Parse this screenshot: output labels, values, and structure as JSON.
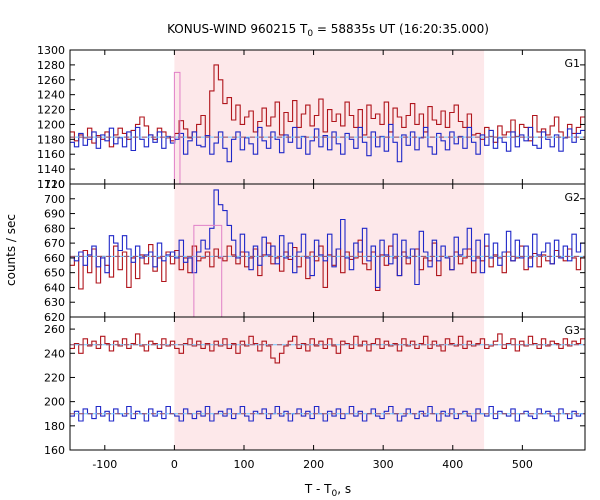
{
  "chart_data": {
    "type": "line",
    "title_main": "KONUS-WIND 960215 T",
    "title_sub": "0",
    "title_rest": " = 58835s UT (16:20:35.000)",
    "xlabel_main": "T - T",
    "xlabel_sub": "0",
    "xlabel_rest": ", s",
    "ylabel": "counts / sec",
    "xlim": [
      -150,
      590
    ],
    "xticks": [
      -100,
      0,
      100,
      200,
      300,
      400,
      500
    ],
    "shaded_interval": [
      0,
      445
    ],
    "shade_color": "#fde8ea",
    "grid": false,
    "panels": [
      {
        "name": "G1",
        "ylim": [
          1120,
          1300
        ],
        "yticks": [
          1120,
          1140,
          1160,
          1180,
          1200,
          1220,
          1240,
          1260,
          1280,
          1300
        ],
        "background_level": 1183,
        "peak_box": {
          "x": [
            0,
            8
          ],
          "y": 1270
        },
        "series": [
          {
            "color": "#b0151c",
            "values": [
              1190,
              1178,
              1186,
              1182,
              1195,
              1175,
              1185,
              1180,
              1190,
              1170,
              1186,
              1195,
              1188,
              1180,
              1192,
              1200,
              1210,
              1198,
              1186,
              1180,
              1195,
              1190,
              1182,
              1178,
              1188,
              1205,
              1194,
              1182,
              1190,
              1200,
              1212,
              1185,
              1245,
              1280,
              1260,
              1228,
              1236,
              1206,
              1226,
              1200,
              1210,
              1218,
              1190,
              1204,
              1222,
              1198,
              1210,
              1230,
              1186,
              1216,
              1204,
              1232,
              1196,
              1214,
              1226,
              1198,
              1212,
              1234,
              1190,
              1220,
              1204,
              1214,
              1198,
              1230,
              1212,
              1196,
              1220,
              1186,
              1226,
              1208,
              1214,
              1200,
              1230,
              1190,
              1222,
              1210,
              1196,
              1212,
              1228,
              1200,
              1214,
              1190,
              1224,
              1206,
              1200,
              1218,
              1196,
              1216,
              1226,
              1204,
              1196,
              1214,
              1186,
              1188,
              1180,
              1196,
              1184,
              1176,
              1198,
              1186,
              1190,
              1206,
              1184,
              1200,
              1196,
              1178,
              1212,
              1190,
              1194,
              1186,
              1198,
              1210,
              1190,
              1182,
              1200,
              1188,
              1196,
              1210
            ]
          },
          {
            "color": "#2028c8",
            "values": [
              1176,
              1170,
              1188,
              1172,
              1180,
              1190,
              1168,
              1186,
              1178,
              1195,
              1174,
              1182,
              1170,
              1190,
              1165,
              1196,
              1180,
              1170,
              1186,
              1176,
              1190,
              1168,
              1184,
              1175,
              1180,
              1188,
              1160,
              1178,
              1190,
              1172,
              1170,
              1185,
              1160,
              1175,
              1190,
              1168,
              1150,
              1180,
              1190,
              1166,
              1182,
              1174,
              1160,
              1196,
              1178,
              1168,
              1190,
              1180,
              1162,
              1186,
              1176,
              1196,
              1168,
              1184,
              1160,
              1178,
              1194,
              1170,
              1185,
              1166,
              1190,
              1174,
              1160,
              1188,
              1180,
              1168,
              1196,
              1176,
              1158,
              1190,
              1170,
              1184,
              1164,
              1200,
              1176,
              1150,
              1186,
              1172,
              1190,
              1166,
              1182,
              1196,
              1170,
              1160,
              1188,
              1178,
              1166,
              1190,
              1174,
              1184,
              1168,
              1196,
              1176,
              1160,
              1186,
              1172,
              1192,
              1168,
              1182,
              1176,
              1164,
              1190,
              1170,
              1186,
              1178,
              1196,
              1172,
              1168,
              1190,
              1180,
              1170,
              1186,
              1164,
              1182,
              1194,
              1176,
              1188,
              1192
            ]
          }
        ]
      },
      {
        "name": "G2",
        "ylim": [
          620,
          710
        ],
        "yticks": [
          620,
          630,
          640,
          650,
          660,
          670,
          680,
          690,
          700,
          710
        ],
        "background_level": 661,
        "peak_box": {
          "x": [
            28,
            68
          ],
          "y": 682
        },
        "series": [
          {
            "color": "#b0151c",
            "values": [
              655,
              661,
              639,
              665,
              650,
              666,
              643,
              661,
              655,
              647,
              668,
              652,
              664,
              640,
              660,
              646,
              662,
              656,
              669,
              651,
              660,
              644,
              664,
              656,
              665,
              652,
              660,
              650,
              668,
              658,
              660,
              664,
              654,
              666,
              660,
              658,
              668,
              662,
              656,
              664,
              654,
              660,
              666,
              648,
              662,
              670,
              656,
              660,
              651,
              664,
              659,
              667,
              654,
              661,
              646,
              664,
              658,
              668,
              640,
              662,
              655,
              666,
              650,
              664,
              659,
              660,
              672,
              656,
              652,
              664,
              638,
              662,
              655,
              668,
              660,
              648,
              664,
              656,
              661,
              666,
              652,
              660,
              658,
              670,
              648,
              661,
              660,
              652,
              664,
              656,
              660,
              666,
              650,
              660,
              658,
              668,
              654,
              662,
              660,
              650,
              664,
              658,
              660,
              668,
              652,
              660,
              663,
              654,
              662,
              658,
              656,
              665,
              660,
              658,
              666,
              660,
              652,
              660
            ]
          },
          {
            "color": "#2028c8",
            "values": [
              660,
              658,
              664,
              655,
              662,
              668,
              654,
              660,
              650,
              675,
              670,
              665,
              675,
              666,
              657,
              668,
              660,
              662,
              664,
              654,
              670,
              658,
              662,
              664,
              660,
              672,
              657,
              660,
              650,
              664,
              672,
              666,
              680,
              706,
              696,
              692,
              682,
              672,
              660,
              676,
              664,
              652,
              668,
              655,
              674,
              662,
              668,
              656,
              675,
              660,
              670,
              650,
              664,
              676,
              660,
              648,
              672,
              662,
              658,
              676,
              654,
              666,
              686,
              660,
              652,
              670,
              664,
              680,
              658,
              668,
              640,
              672,
              662,
              656,
              676,
              648,
              672,
              660,
              666,
              642,
              678,
              664,
              654,
              672,
              658,
              668,
              660,
              652,
              674,
              662,
              666,
              680,
              658,
              672,
              650,
              676,
              660,
              670,
              655,
              664,
              678,
              658,
              672,
              660,
              668,
              654,
              676,
              662,
              664,
              670,
              656,
              672,
              660,
              668,
              658,
              676,
              664,
              670
            ]
          }
        ]
      },
      {
        "name": "G3",
        "ylim": [
          160,
          270
        ],
        "yticks": [
          160,
          180,
          200,
          220,
          240,
          260
        ],
        "background_level": 247,
        "background_level_2": 190,
        "series": [
          {
            "color": "#b0151c",
            "values": [
              244,
              248,
              240,
              252,
              246,
              250,
              244,
              254,
              248,
              242,
              250,
              246,
              252,
              244,
              248,
              256,
              246,
              242,
              250,
              248,
              244,
              252,
              246,
              250,
              244,
              240,
              248,
              252,
              246,
              250,
              244,
              248,
              242,
              250,
              246,
              252,
              244,
              248,
              240,
              250,
              246,
              254,
              248,
              242,
              250,
              246,
              236,
              232,
              240,
              246,
              250,
              254,
              244,
              248,
              242,
              252,
              246,
              250,
              244,
              252,
              246,
              240,
              250,
              248,
              244,
              254,
              246,
              250,
              242,
              248,
              252,
              244,
              250,
              246,
              248,
              242,
              252,
              246,
              250,
              244,
              248,
              254,
              244,
              250,
              246,
              242,
              252,
              248,
              246,
              254,
              244,
              250,
              246,
              248,
              252,
              244,
              246,
              250,
              256,
              244,
              248,
              252,
              242,
              250,
              246,
              254,
              248,
              244,
              252,
              246,
              250,
              248,
              244,
              252,
              246,
              250,
              248,
              252
            ]
          },
          {
            "color": "#2028c8",
            "values": [
              188,
              192,
              184,
              194,
              190,
              186,
              196,
              188,
              192,
              184,
              194,
              190,
              188,
              196,
              186,
              192,
              190,
              184,
              194,
              188,
              192,
              186,
              196,
              190,
              188,
              184,
              194,
              190,
              186,
              192,
              188,
              196,
              184,
              190,
              192,
              188,
              194,
              186,
              190,
              196,
              188,
              184,
              192,
              190,
              194,
              186,
              190,
              196,
              188,
              192,
              184,
              190,
              194,
              188,
              192,
              186,
              196,
              190,
              184,
              192,
              188,
              194,
              186,
              190,
              196,
              188,
              192,
              184,
              190,
              194,
              188,
              186,
              192,
              196,
              190,
              184,
              188,
              194,
              190,
              186,
              192,
              188,
              196,
              190,
              184,
              192,
              188,
              194,
              186,
              190,
              192,
              188,
              184,
              194,
              190,
              188,
              196,
              186,
              192,
              190,
              188,
              194,
              184,
              190,
              192,
              188,
              186,
              194,
              190,
              192,
              188,
              184,
              194,
              190,
              186,
              192,
              188,
              190
            ]
          }
        ]
      }
    ]
  }
}
